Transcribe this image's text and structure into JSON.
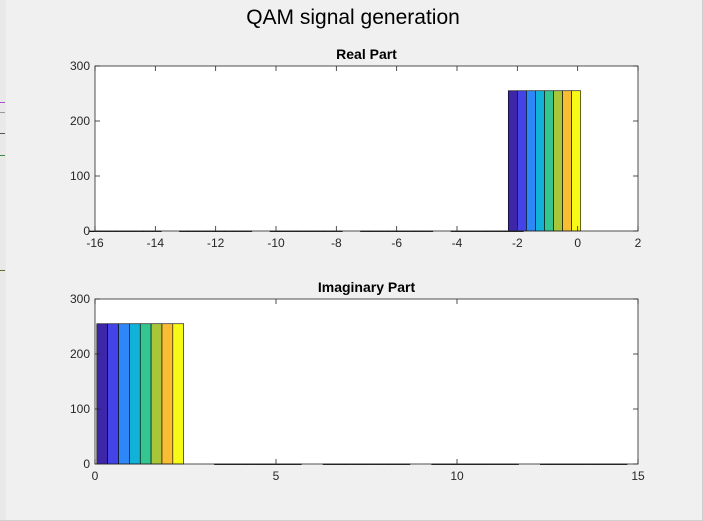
{
  "figure": {
    "title": "QAM signal generation",
    "background": "#f0f0f0"
  },
  "chart_data": [
    {
      "type": "bar",
      "title": "Real Part",
      "xlabel": "",
      "ylabel": "",
      "xlim": [
        -16,
        2
      ],
      "ylim": [
        0,
        300
      ],
      "xticks": [
        -16,
        -14,
        -12,
        -10,
        -8,
        -6,
        -4,
        -2,
        0,
        2
      ],
      "xtick_labels": [
        "-16",
        "-14",
        "-12",
        "-10",
        "-8",
        "-6",
        "-4",
        "-2",
        "0",
        "2"
      ],
      "yticks": [
        0,
        100,
        200,
        300
      ],
      "ytick_labels": [
        "0",
        "100",
        "200",
        "300"
      ],
      "grid": false,
      "groups": [
        {
          "center": -15,
          "values": [
            0,
            0,
            0,
            0,
            0,
            0,
            0,
            0
          ]
        },
        {
          "center": -12,
          "values": [
            0,
            0,
            0,
            0,
            0,
            0,
            0,
            0
          ]
        },
        {
          "center": -9,
          "values": [
            0,
            0,
            0,
            0,
            0,
            0,
            0,
            0
          ]
        },
        {
          "center": -6,
          "values": [
            0,
            0,
            0,
            0,
            0,
            0,
            0,
            0
          ]
        },
        {
          "center": -3,
          "values": [
            0,
            0,
            0,
            0,
            0,
            0,
            0,
            0
          ]
        },
        {
          "center": -1.1,
          "values": [
            255,
            255,
            255,
            255,
            255,
            255,
            255,
            255
          ]
        }
      ],
      "colors": [
        "#3e26a8",
        "#4443e8",
        "#2e87f7",
        "#12b1d8",
        "#34c590",
        "#a9c639",
        "#f9bd34",
        "#f7f916"
      ]
    },
    {
      "type": "bar",
      "title": "Imaginary Part",
      "xlabel": "",
      "ylabel": "",
      "xlim": [
        0,
        15
      ],
      "ylim": [
        0,
        300
      ],
      "xticks": [
        0,
        5,
        10,
        15
      ],
      "xtick_labels": [
        "0",
        "5",
        "10",
        "15"
      ],
      "yticks": [
        0,
        100,
        200,
        300
      ],
      "ytick_labels": [
        "0",
        "100",
        "200",
        "300"
      ],
      "grid": false,
      "groups": [
        {
          "center": 1.25,
          "values": [
            255,
            255,
            255,
            255,
            255,
            255,
            255,
            255
          ]
        },
        {
          "center": 4.5,
          "values": [
            0,
            0,
            0,
            0,
            0,
            0,
            0,
            0
          ]
        },
        {
          "center": 7.5,
          "values": [
            0,
            0,
            0,
            0,
            0,
            0,
            0,
            0
          ]
        },
        {
          "center": 10.5,
          "values": [
            0,
            0,
            0,
            0,
            0,
            0,
            0,
            0
          ]
        },
        {
          "center": 13.5,
          "values": [
            0,
            0,
            0,
            0,
            0,
            0,
            0,
            0
          ]
        }
      ],
      "colors": [
        "#3e26a8",
        "#4443e8",
        "#2e87f7",
        "#12b1d8",
        "#34c590",
        "#a9c639",
        "#f9bd34",
        "#f7f916"
      ]
    }
  ]
}
